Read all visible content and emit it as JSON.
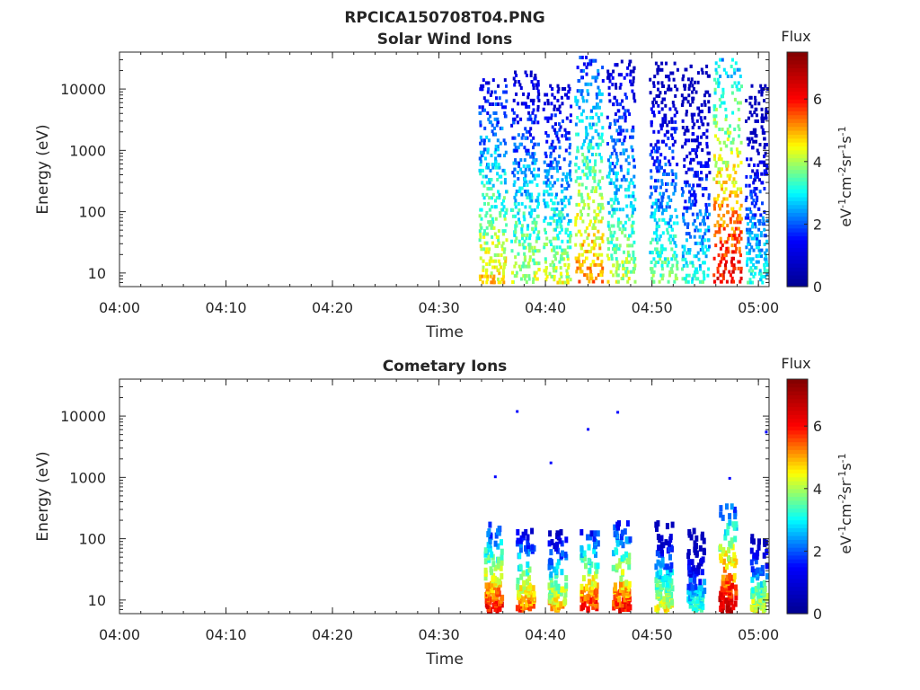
{
  "figure": {
    "title": "RPCICA150708T04.PNG"
  },
  "colorbar": {
    "label": "Flux",
    "unit_parts": [
      "eV",
      "-1",
      "cm",
      "-2",
      "sr",
      "-1",
      "s",
      "-1"
    ],
    "ticks": [
      "0",
      "2",
      "4",
      "6"
    ],
    "range": [
      0,
      7.5
    ],
    "colormap": "jet",
    "colors": [
      "#00008f",
      "#0000ff",
      "#00ffff",
      "#ffff00",
      "#ff0000",
      "#800000"
    ]
  },
  "chart_data": [
    {
      "type": "heatmap",
      "title": "Solar Wind Ions",
      "xlabel": "Time",
      "ylabel": "Energy (eV)",
      "xticks": [
        "04:00",
        "04:10",
        "04:20",
        "04:30",
        "04:40",
        "04:50",
        "05:00"
      ],
      "yticks": [
        "10",
        "100",
        "1000",
        "10000"
      ],
      "yscale": "log",
      "xlim": [
        "04:00",
        "05:01"
      ],
      "ylim": [
        6,
        40000
      ],
      "bursts": [
        {
          "t": "04:35",
          "emin": 6,
          "emax": 15000,
          "peak_flux": 5
        },
        {
          "t": "04:38",
          "emin": 6,
          "emax": 20000,
          "peak_flux": 4.5
        },
        {
          "t": "04:41",
          "emin": 6,
          "emax": 12000,
          "peak_flux": 4.5
        },
        {
          "t": "04:44",
          "emin": 6,
          "emax": 35000,
          "peak_flux": 5.5
        },
        {
          "t": "04:47",
          "emin": 6,
          "emax": 30000,
          "peak_flux": 4.5
        },
        {
          "t": "04:51",
          "emin": 6,
          "emax": 28000,
          "peak_flux": 4
        },
        {
          "t": "04:54",
          "emin": 6,
          "emax": 25000,
          "peak_flux": 3.5
        },
        {
          "t": "04:57",
          "emin": 6,
          "emax": 32000,
          "peak_flux": 6.5
        },
        {
          "t": "05:00",
          "emin": 6,
          "emax": 12000,
          "peak_flux": 3.5
        }
      ]
    },
    {
      "type": "heatmap",
      "title": "Cometary Ions",
      "xlabel": "Time",
      "ylabel": "Energy (eV)",
      "xticks": [
        "04:00",
        "04:10",
        "04:20",
        "04:30",
        "04:40",
        "04:50",
        "05:00"
      ],
      "yticks": [
        "10",
        "100",
        "1000",
        "10000"
      ],
      "yscale": "log",
      "xlim": [
        "04:00",
        "05:01"
      ],
      "ylim": [
        6,
        40000
      ],
      "bursts": [
        {
          "t": "04:35",
          "emin": 6,
          "emax": 200,
          "peak_flux": 6.5
        },
        {
          "t": "04:38",
          "emin": 6,
          "emax": 150,
          "peak_flux": 6
        },
        {
          "t": "04:41",
          "emin": 6,
          "emax": 150,
          "peak_flux": 5.5
        },
        {
          "t": "04:44",
          "emin": 6,
          "emax": 150,
          "peak_flux": 6.5
        },
        {
          "t": "04:47",
          "emin": 6,
          "emax": 200,
          "peak_flux": 6.5
        },
        {
          "t": "04:51",
          "emin": 6,
          "emax": 200,
          "peak_flux": 5
        },
        {
          "t": "04:54",
          "emin": 6,
          "emax": 150,
          "peak_flux": 4
        },
        {
          "t": "04:57",
          "emin": 6,
          "emax": 400,
          "peak_flux": 7
        },
        {
          "t": "05:00",
          "emin": 6,
          "emax": 120,
          "peak_flux": 5
        }
      ]
    }
  ]
}
